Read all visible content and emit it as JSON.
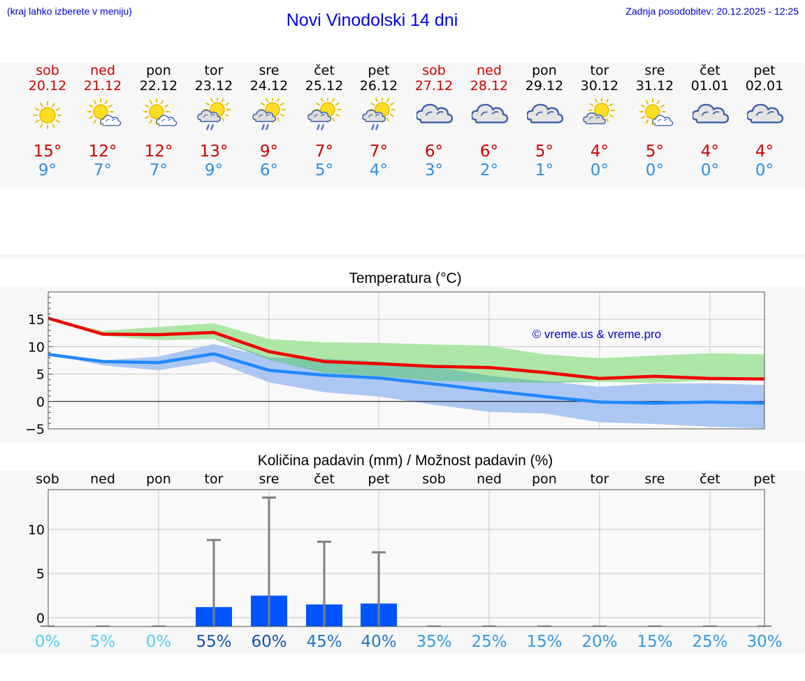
{
  "header": {
    "hint": "(kraj lahko izberete v meniju)",
    "title": "Novi Vinodolski 14 dni",
    "updated": "Zadnja posodobitev: 20.12.2025 - 12:25"
  },
  "days": [
    {
      "name": "sob",
      "date": "20.12",
      "weekend": true,
      "icon": "sun-icon",
      "max": "15°",
      "min": "9°"
    },
    {
      "name": "ned",
      "date": "21.12",
      "weekend": true,
      "icon": "sun-cloud-icon",
      "max": "12°",
      "min": "7°"
    },
    {
      "name": "pon",
      "date": "22.12",
      "weekend": false,
      "icon": "sun-cloud-icon",
      "max": "12°",
      "min": "7°"
    },
    {
      "name": "tor",
      "date": "23.12",
      "weekend": false,
      "icon": "sun-cloud-rain-icon",
      "max": "13°",
      "min": "9°"
    },
    {
      "name": "sre",
      "date": "24.12",
      "weekend": false,
      "icon": "sun-cloud-rain-icon",
      "max": "9°",
      "min": "6°"
    },
    {
      "name": "čet",
      "date": "25.12",
      "weekend": false,
      "icon": "sun-cloud-rain-icon",
      "max": "7°",
      "min": "5°"
    },
    {
      "name": "pet",
      "date": "26.12",
      "weekend": false,
      "icon": "sun-cloud-rain-icon",
      "max": "7°",
      "min": "4°"
    },
    {
      "name": "sob",
      "date": "27.12",
      "weekend": true,
      "icon": "cloud-icon",
      "max": "6°",
      "min": "3°"
    },
    {
      "name": "ned",
      "date": "28.12",
      "weekend": true,
      "icon": "cloud-icon",
      "max": "6°",
      "min": "2°"
    },
    {
      "name": "pon",
      "date": "29.12",
      "weekend": false,
      "icon": "cloud-icon",
      "max": "5°",
      "min": "1°"
    },
    {
      "name": "tor",
      "date": "30.12",
      "weekend": false,
      "icon": "sun-cloud-gray-icon",
      "max": "4°",
      "min": "0°"
    },
    {
      "name": "sre",
      "date": "31.12",
      "weekend": false,
      "icon": "sun-cloud-icon",
      "max": "5°",
      "min": "0°"
    },
    {
      "name": "čet",
      "date": "01.01",
      "weekend": false,
      "icon": "cloud-icon",
      "max": "4°",
      "min": "0°"
    },
    {
      "name": "pet",
      "date": "02.01",
      "weekend": false,
      "icon": "cloud-icon",
      "max": "4°",
      "min": "0°"
    }
  ],
  "colors": {
    "weekend": "#cc0000",
    "weekday": "#000000",
    "max_line": "#ee0000",
    "min_line": "#2288ff",
    "max_band": "#aee6a8",
    "min_band": "#a9c4f2",
    "overlap_band": "#7dc8a8",
    "bar": "#0055ff",
    "whisker": "#808080"
  },
  "chart_data": [
    {
      "type": "line",
      "title": "Temperatura (°C)",
      "watermark": "© vreme.us & vreme.pro",
      "x": [
        0,
        1,
        2,
        3,
        4,
        5,
        6,
        7,
        8,
        9,
        10,
        11,
        12,
        13
      ],
      "ylim": [
        -5,
        20
      ],
      "yticks": [
        -5,
        0,
        5,
        10,
        15
      ],
      "ytick_labels": [
        "−5",
        "0",
        "5",
        "10",
        "15"
      ],
      "series": [
        {
          "name": "max",
          "values": [
            15.2,
            12.3,
            12.2,
            12.6,
            9.1,
            7.3,
            6.9,
            6.4,
            6.2,
            5.3,
            4.2,
            4.6,
            4.2,
            4.1
          ]
        },
        {
          "name": "min",
          "values": [
            8.6,
            7.3,
            7.1,
            8.7,
            5.7,
            4.8,
            4.3,
            3.2,
            2.0,
            0.9,
            -0.1,
            -0.3,
            -0.1,
            -0.3
          ]
        }
      ],
      "bands": [
        {
          "name": "max_range",
          "low": [
            15.2,
            12.0,
            11.2,
            11.4,
            7.6,
            5.2,
            4.6,
            3.8,
            3.5,
            3.4,
            3.6,
            3.4,
            3.8,
            3.9
          ],
          "high": [
            15.2,
            12.9,
            13.6,
            14.3,
            11.4,
            10.8,
            10.7,
            10.4,
            10.2,
            8.6,
            7.9,
            8.4,
            8.8,
            8.6
          ]
        },
        {
          "name": "min_range",
          "low": [
            8.6,
            6.6,
            5.7,
            7.3,
            3.5,
            1.7,
            0.9,
            -0.6,
            -1.9,
            -2.2,
            -3.8,
            -4.1,
            -4.6,
            -4.9
          ],
          "high": [
            8.6,
            7.5,
            8.2,
            10.5,
            8.0,
            7.8,
            7.3,
            6.4,
            4.7,
            3.7,
            2.7,
            3.3,
            3.3,
            3.0
          ]
        }
      ]
    },
    {
      "type": "bar",
      "title": "Količina padavin (mm) / Možnost padavin (%)",
      "categories": [
        "sob",
        "ned",
        "pon",
        "tor",
        "sre",
        "čet",
        "pet",
        "sob",
        "ned",
        "pon",
        "tor",
        "sre",
        "čet",
        "pet"
      ],
      "ylim": [
        -1,
        14.5
      ],
      "yticks": [
        0,
        5,
        10
      ],
      "ytick_labels": [
        "0",
        "5",
        "10"
      ],
      "values": [
        0,
        0,
        0,
        1.2,
        2.5,
        1.5,
        1.6,
        0,
        0,
        0,
        0,
        0,
        0,
        0
      ],
      "max_values": [
        0,
        0,
        0,
        8.8,
        13.6,
        8.6,
        7.4,
        0,
        0,
        0,
        0,
        0,
        0,
        0
      ],
      "probability": [
        "0%",
        "5%",
        "0%",
        "55%",
        "60%",
        "45%",
        "40%",
        "35%",
        "25%",
        "15%",
        "20%",
        "15%",
        "25%",
        "30%"
      ],
      "probability_colors": [
        "#55ccee",
        "#55ccee",
        "#55ccee",
        "#1155aa",
        "#1155aa",
        "#2277cc",
        "#2277cc",
        "#3399dd",
        "#3399dd",
        "#3399dd",
        "#3399dd",
        "#3399dd",
        "#3399dd",
        "#3399dd"
      ]
    }
  ]
}
